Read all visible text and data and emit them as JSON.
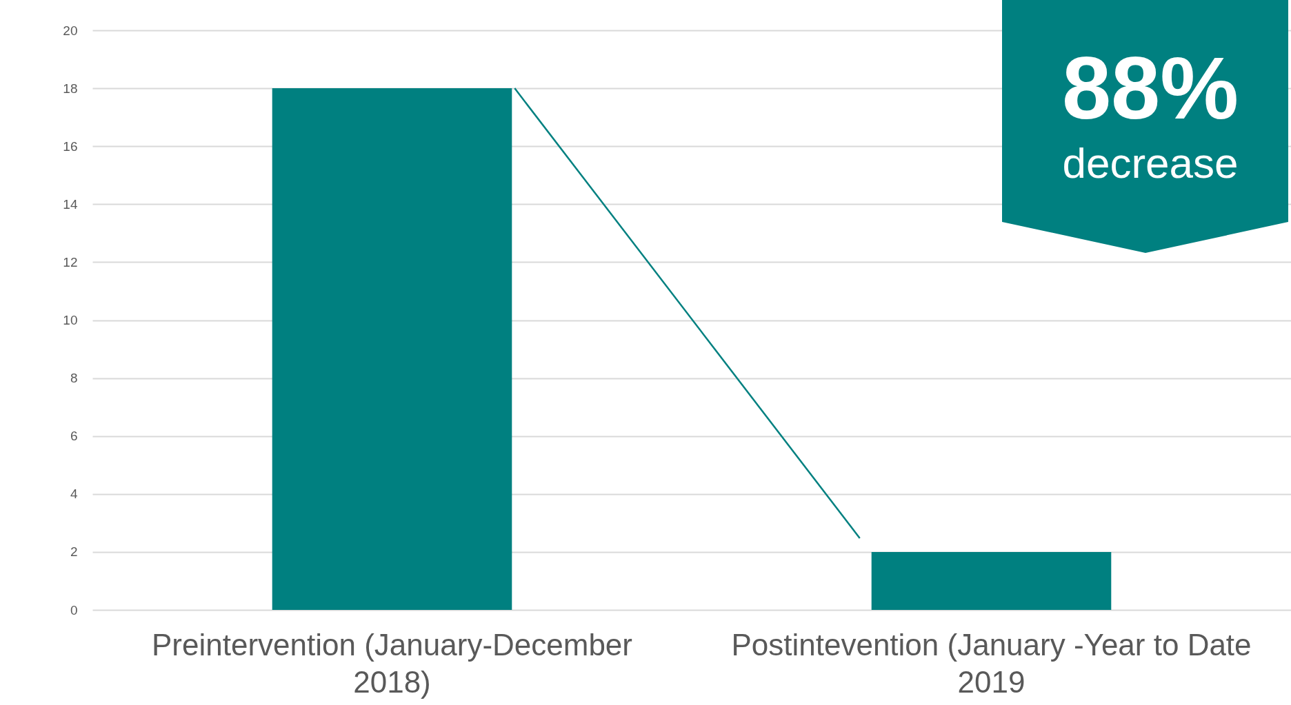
{
  "chart_data": {
    "type": "bar",
    "categories": [
      "Preintervention (January-December 2018)",
      "Postintevention (January -Year to Date 2019"
    ],
    "values": [
      18,
      2
    ],
    "color": "#008080",
    "ylim": [
      0,
      20
    ],
    "yticks": [
      0,
      2,
      4,
      6,
      8,
      10,
      12,
      14,
      16,
      18,
      20
    ],
    "grid": "y",
    "annotations": [
      "88% decrease"
    ]
  }
}
